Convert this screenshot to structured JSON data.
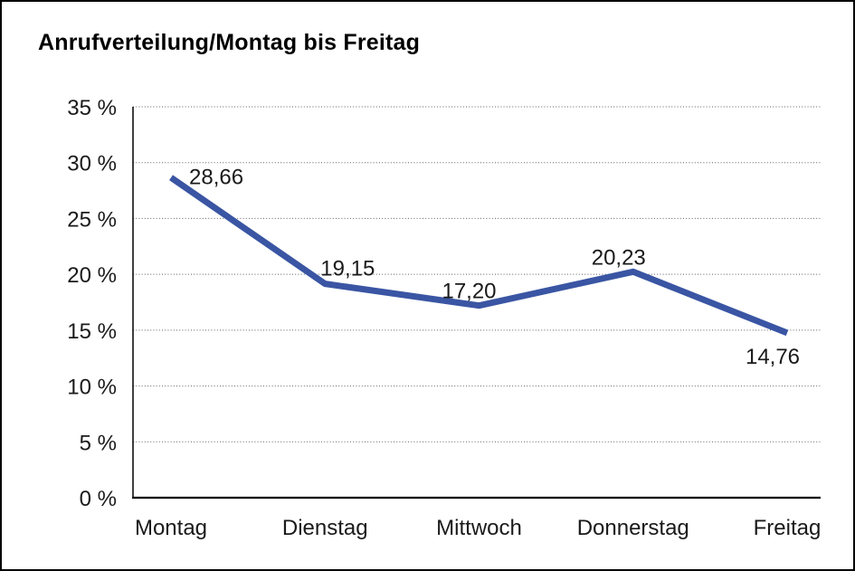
{
  "chart_data": {
    "type": "line",
    "title": "Anrufverteilung/Montag bis Freitag",
    "categories": [
      "Montag",
      "Dienstag",
      "Mittwoch",
      "Donnerstag",
      "Freitag"
    ],
    "series": [
      {
        "name": "Anrufverteilung",
        "values": [
          28.66,
          19.15,
          17.2,
          20.23,
          14.76
        ],
        "value_labels": [
          "28,66",
          "19,15",
          "17,20",
          "20,23",
          "14,76"
        ]
      }
    ],
    "xlabel": "",
    "ylabel": "",
    "ylim": [
      0,
      35
    ],
    "y_tick_step": 5,
    "y_tick_labels": [
      "0 %",
      "5 %",
      "10 %",
      "15 %",
      "20 %",
      "25 %",
      "30 %",
      "35 %"
    ],
    "grid": "horizontal-dotted",
    "legend": "none",
    "colors": {
      "line": "#3A55A3",
      "axis": "#000000",
      "gridline": "#606060",
      "text": "#1a1a1a",
      "background": "#ffffff",
      "frame_border": "#000000"
    }
  }
}
